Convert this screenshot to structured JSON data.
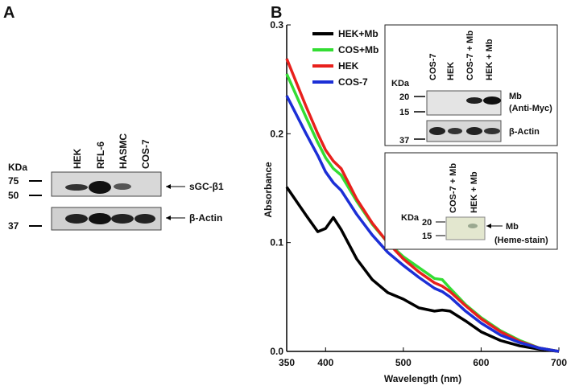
{
  "panel_a": {
    "label": "A",
    "kda": "KDa",
    "lanes": [
      "HEK",
      "RFL-6",
      "HASMC",
      "COS-7"
    ],
    "markers": [
      "75",
      "50",
      "37"
    ],
    "bands": [
      "sGC-β1",
      "β-Actin"
    ]
  },
  "panel_b": {
    "label": "B"
  },
  "chart_data": {
    "type": "line",
    "xlabel": "Wavelength (nm)",
    "ylabel": "Absorbance",
    "x": [
      350,
      375,
      390,
      400,
      410,
      420,
      440,
      460,
      480,
      500,
      520,
      540,
      550,
      560,
      580,
      600,
      625,
      650,
      675,
      700
    ],
    "xlim": [
      350,
      700
    ],
    "xticks": [
      350,
      400,
      500,
      600,
      700
    ],
    "ylim": [
      0,
      0.3
    ],
    "yticks": [
      {
        "value": 0,
        "label": "0.0"
      },
      0.1,
      0.2,
      0.3
    ],
    "legend": "upper left",
    "series": [
      {
        "name": "HEK+Mb",
        "color": "#000000",
        "values": [
          0.151,
          0.125,
          0.11,
          0.113,
          0.123,
          0.112,
          0.085,
          0.066,
          0.054,
          0.048,
          0.04,
          0.037,
          0.038,
          0.037,
          0.028,
          0.018,
          0.01,
          0.005,
          0.002,
          0
        ]
      },
      {
        "name": "COS+Mb",
        "color": "#33dd33",
        "values": [
          0.255,
          0.215,
          0.192,
          0.178,
          0.168,
          0.162,
          0.138,
          0.117,
          0.1,
          0.087,
          0.077,
          0.067,
          0.066,
          0.058,
          0.043,
          0.031,
          0.019,
          0.01,
          0.003,
          0
        ]
      },
      {
        "name": "HEK",
        "color": "#e8201c",
        "values": [
          0.269,
          0.225,
          0.2,
          0.185,
          0.175,
          0.168,
          0.14,
          0.118,
          0.1,
          0.085,
          0.073,
          0.063,
          0.06,
          0.055,
          0.042,
          0.03,
          0.018,
          0.009,
          0.003,
          0
        ]
      },
      {
        "name": "COS-7",
        "color": "#1c2fd6",
        "values": [
          0.235,
          0.2,
          0.18,
          0.165,
          0.155,
          0.148,
          0.126,
          0.107,
          0.091,
          0.079,
          0.068,
          0.058,
          0.055,
          0.05,
          0.037,
          0.026,
          0.015,
          0.008,
          0.003,
          0
        ]
      }
    ]
  },
  "insets": [
    {
      "kda": "KDa",
      "lanes": [
        "COS-7",
        "HEK",
        "COS-7 + Mb",
        "HEK + Mb"
      ],
      "markers": [
        "20",
        "15",
        "37"
      ],
      "bands": [
        "Mb",
        "(Anti-Myc)",
        "β-Actin"
      ]
    },
    {
      "kda": "KDa",
      "lanes": [
        "COS-7 + Mb",
        "HEK + Mb"
      ],
      "markers": [
        "20",
        "15"
      ],
      "bands": [
        "Mb",
        "(Heme-stain)"
      ]
    }
  ]
}
